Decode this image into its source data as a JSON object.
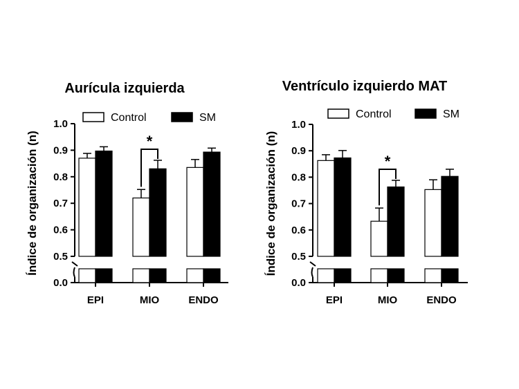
{
  "chart_data": [
    {
      "type": "bar",
      "title": "Aurícula izquierda",
      "ylabel": "Índice de organización (n)",
      "categories": [
        "EPI",
        "MIO",
        "ENDO"
      ],
      "series": [
        {
          "name": "Control",
          "values": [
            0.87,
            0.72,
            0.835
          ],
          "errors": [
            0.018,
            0.032,
            0.03
          ],
          "color": "#ffffff"
        },
        {
          "name": "SM",
          "values": [
            0.897,
            0.83,
            0.893
          ],
          "errors": [
            0.016,
            0.032,
            0.015
          ],
          "color": "#000000"
        }
      ],
      "ylim": [
        0.5,
        1.0
      ],
      "axis_break": {
        "lower_tick": "0.0",
        "upper_start": 0.5
      },
      "yticks": [
        "0.5",
        "0.6",
        "0.7",
        "0.8",
        "0.9",
        "1.0"
      ],
      "significance": {
        "category": "MIO",
        "label": "*"
      },
      "legend": "top"
    },
    {
      "type": "bar",
      "title": "Ventrículo izquierdo MAT",
      "ylabel": "Índice de organización (n)",
      "categories": [
        "EPI",
        "MIO",
        "ENDO"
      ],
      "series": [
        {
          "name": "Control",
          "values": [
            0.863,
            0.633,
            0.753
          ],
          "errors": [
            0.022,
            0.05,
            0.037
          ],
          "color": "#ffffff"
        },
        {
          "name": "SM",
          "values": [
            0.873,
            0.763,
            0.803
          ],
          "errors": [
            0.028,
            0.025,
            0.027
          ],
          "color": "#000000"
        }
      ],
      "ylim": [
        0.5,
        1.0
      ],
      "axis_break": {
        "lower_tick": "0.0",
        "upper_start": 0.5
      },
      "yticks": [
        "0.5",
        "0.6",
        "0.7",
        "0.8",
        "0.9",
        "1.0"
      ],
      "significance": {
        "category": "MIO",
        "label": "*"
      },
      "legend": "top"
    }
  ]
}
